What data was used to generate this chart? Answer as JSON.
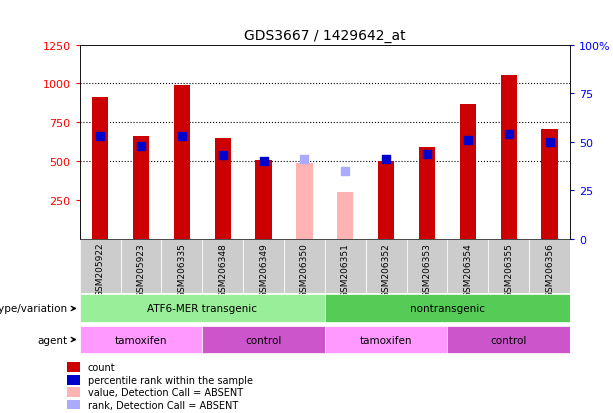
{
  "title": "GDS3667 / 1429642_at",
  "samples": [
    "GSM205922",
    "GSM205923",
    "GSM206335",
    "GSM206348",
    "GSM206349",
    "GSM206350",
    "GSM206351",
    "GSM206352",
    "GSM206353",
    "GSM206354",
    "GSM206355",
    "GSM206356"
  ],
  "counts_present": [
    910,
    660,
    990,
    650,
    510,
    null,
    null,
    505,
    590,
    870,
    1055,
    710
  ],
  "counts_absent": [
    null,
    null,
    null,
    null,
    null,
    490,
    300,
    null,
    null,
    null,
    null,
    null
  ],
  "percentile_ranks_present": [
    53,
    48,
    53,
    43,
    40,
    null,
    null,
    41,
    44,
    51,
    54,
    50
  ],
  "percentile_ranks_absent": [
    null,
    null,
    null,
    null,
    null,
    41,
    35,
    null,
    null,
    null,
    null,
    null
  ],
  "bar_color_present": "#CC0000",
  "bar_color_absent": "#FFB3B3",
  "dot_color_present": "#0000CC",
  "dot_color_absent": "#AAAAFF",
  "ylim_left": [
    0,
    1250
  ],
  "ylim_right": [
    0,
    100
  ],
  "yticks_left": [
    250,
    500,
    750,
    1000,
    1250
  ],
  "yticks_right": [
    0,
    25,
    50,
    75,
    100
  ],
  "grid_values": [
    500,
    750,
    1000
  ],
  "genotype_groups": [
    {
      "label": "ATF6-MER transgenic",
      "start": 0,
      "end": 6,
      "color": "#99EE99"
    },
    {
      "label": "nontransgenic",
      "start": 6,
      "end": 12,
      "color": "#55CC55"
    }
  ],
  "agent_groups": [
    {
      "label": "tamoxifen",
      "start": 0,
      "end": 3,
      "color": "#FF99FF"
    },
    {
      "label": "control",
      "start": 3,
      "end": 6,
      "color": "#CC55CC"
    },
    {
      "label": "tamoxifen",
      "start": 6,
      "end": 9,
      "color": "#FF99FF"
    },
    {
      "label": "control",
      "start": 9,
      "end": 12,
      "color": "#CC55CC"
    }
  ],
  "legend_items": [
    {
      "label": "count",
      "color": "#CC0000"
    },
    {
      "label": "percentile rank within the sample",
      "color": "#0000CC"
    },
    {
      "label": "value, Detection Call = ABSENT",
      "color": "#FFB3B3"
    },
    {
      "label": "rank, Detection Call = ABSENT",
      "color": "#AAAAFF"
    }
  ],
  "genotype_label": "genotype/variation",
  "agent_label": "agent",
  "sample_bg_color": "#CCCCCC",
  "bar_width": 0.4
}
